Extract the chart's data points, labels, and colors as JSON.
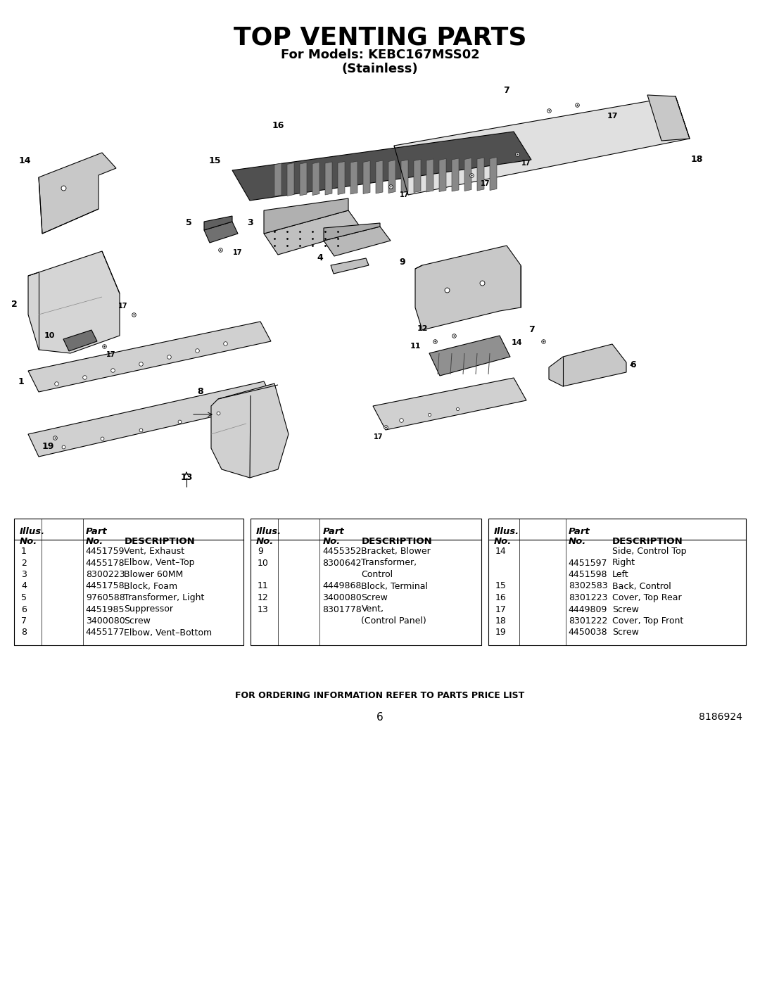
{
  "title": "TOP VENTING PARTS",
  "subtitle1": "For Models: KEBC167MSS02",
  "subtitle2": "(Stainless)",
  "bg_color": "#ffffff",
  "title_fontsize": 26,
  "subtitle_fontsize": 13,
  "col1_rows": [
    [
      "1",
      "4451759",
      "Vent, Exhaust"
    ],
    [
      "2",
      "4455178",
      "Elbow, Vent–Top"
    ],
    [
      "3",
      "8300223",
      "Blower 60MM"
    ],
    [
      "4",
      "4451758",
      "Block, Foam"
    ],
    [
      "5",
      "9760588",
      "Transformer, Light"
    ],
    [
      "6",
      "4451985",
      "Suppressor"
    ],
    [
      "7",
      "3400080",
      "Screw"
    ],
    [
      "8",
      "4455177",
      "Elbow, Vent–Bottom"
    ]
  ],
  "col2_rows": [
    [
      "9",
      "4455352",
      "Bracket, Blower"
    ],
    [
      "10",
      "8300642",
      "Transformer,"
    ],
    [
      "",
      "",
      "Control"
    ],
    [
      "11",
      "4449868",
      "Block, Terminal"
    ],
    [
      "12",
      "3400080",
      "Screw"
    ],
    [
      "13",
      "8301778",
      "Vent,"
    ],
    [
      "",
      "",
      "(Control Panel)"
    ]
  ],
  "col3_rows": [
    [
      "14",
      "",
      "Side, Control Top"
    ],
    [
      "",
      "4451597",
      "Right"
    ],
    [
      "",
      "4451598",
      "Left"
    ],
    [
      "15",
      "8302583",
      "Back, Control"
    ],
    [
      "16",
      "8301223",
      "Cover, Top Rear"
    ],
    [
      "17",
      "4449809",
      "Screw"
    ],
    [
      "18",
      "8301222",
      "Cover, Top Front"
    ],
    [
      "19",
      "4450038",
      "Screw"
    ]
  ],
  "footer_text": "FOR ORDERING INFORMATION REFER TO PARTS PRICE LIST",
  "page_number": "6",
  "doc_number": "8186924"
}
